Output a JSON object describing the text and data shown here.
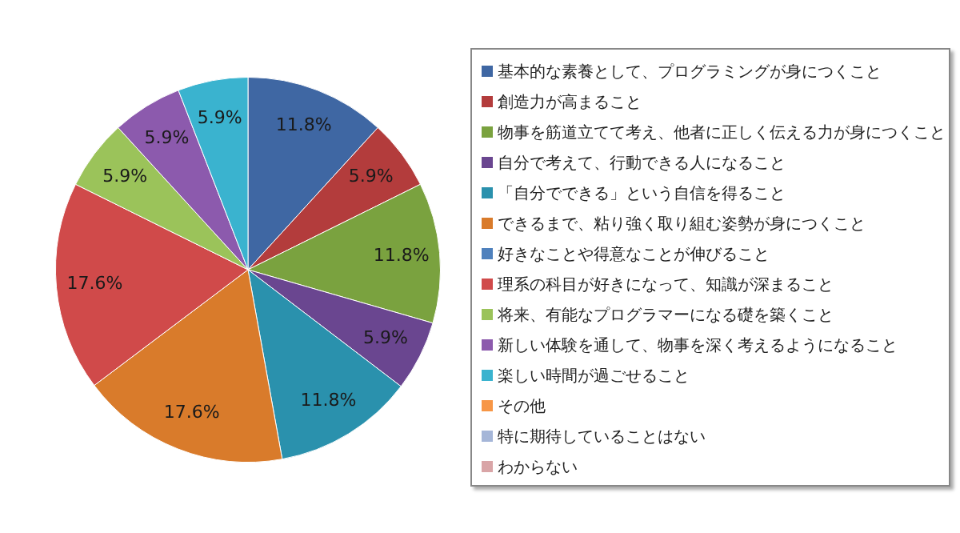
{
  "chart_data": {
    "type": "pie",
    "categories": [
      "基本的な素養として、プログラミングが身につくこと",
      "創造力が高まること",
      "物事を筋道立てて考え、他者に正しく伝える力が身につくこと",
      "自分で考えて、行動できる人になること",
      "「自分でできる」という自信を得ること",
      "できるまで、粘り強く取り組む姿勢が身につくこと",
      "好きなことや得意なことが伸びること",
      "理系の科目が好きになって、知識が深まること",
      "将来、有能なプログラマーになる礎を築くこと",
      "新しい体験を通して、物事を深く考えるようになること",
      "楽しい時間が過ごせること",
      "その他",
      "特に期待していることはない",
      "わからない"
    ],
    "values": [
      11.8,
      5.9,
      11.8,
      5.9,
      11.8,
      17.6,
      0,
      17.6,
      5.9,
      5.9,
      5.9,
      0,
      0,
      0
    ],
    "value_labels": [
      "11.8%",
      "5.9%",
      "11.8%",
      "5.9%",
      "11.8%",
      "17.6%",
      null,
      "17.6%",
      "5.9%",
      "5.9%",
      "5.9%",
      null,
      null,
      null
    ],
    "colors": [
      "#3f67a3",
      "#b33c3c",
      "#7aa23f",
      "#6a4690",
      "#2a91ad",
      "#d97b2b",
      "#4f81bd",
      "#d04a4a",
      "#9bc35a",
      "#8c5aad",
      "#3ab3cf",
      "#f79646",
      "#a5b6d8",
      "#d9a5a7"
    ],
    "legend": "right"
  }
}
